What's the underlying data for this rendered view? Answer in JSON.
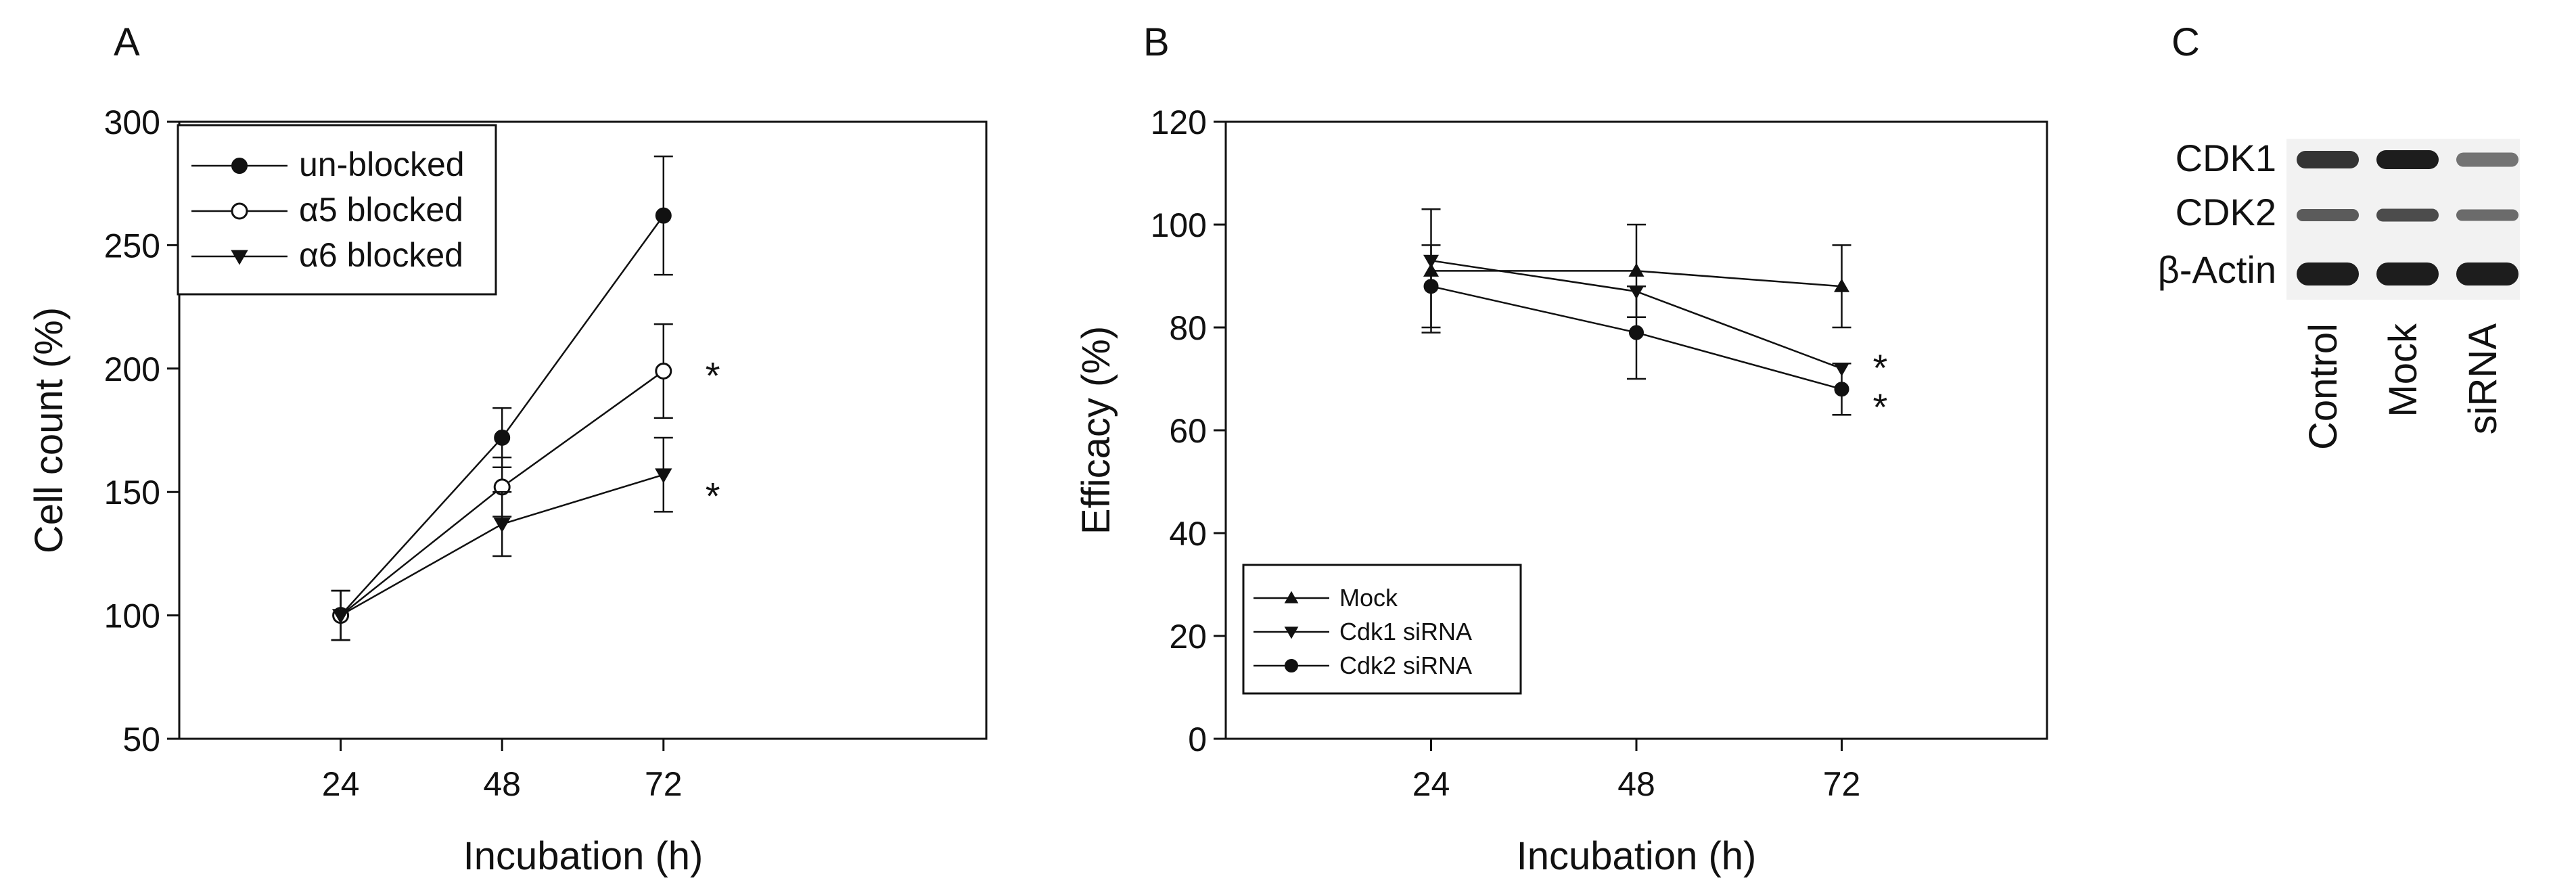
{
  "colors": {
    "ink": "#111111",
    "background": "#ffffff",
    "blot_background": "#f2f2f2"
  },
  "chart_data": [
    {
      "panel": "A",
      "type": "line",
      "xlabel": "Incubation (h)",
      "ylabel": "Cell count (%)",
      "x": [
        24,
        48,
        72
      ],
      "x_tick_labels": [
        "24",
        "48",
        "72"
      ],
      "xlim": [
        0,
        120
      ],
      "ylim": [
        50,
        300
      ],
      "y_ticks": [
        50,
        100,
        150,
        200,
        250,
        300
      ],
      "legend_position": "top-left",
      "series": [
        {
          "name": "un-blocked",
          "marker": "filled-circle",
          "values": [
            100,
            172,
            262
          ],
          "errors": [
            10,
            12,
            24
          ],
          "significance": [
            "",
            "",
            ""
          ]
        },
        {
          "name": "α5 blocked",
          "marker": "open-circle",
          "values": [
            100,
            152,
            199
          ],
          "errors": [
            10,
            12,
            19
          ],
          "significance": [
            "",
            "",
            "*"
          ]
        },
        {
          "name": "α6 blocked",
          "marker": "filled-triangle-down",
          "values": [
            100,
            137,
            157
          ],
          "errors": [
            10,
            13,
            15
          ],
          "significance": [
            "",
            "",
            "*"
          ]
        }
      ]
    },
    {
      "panel": "B",
      "type": "line",
      "xlabel": "Incubation (h)",
      "ylabel": "Efficacy (%)",
      "x": [
        24,
        48,
        72
      ],
      "x_tick_labels": [
        "24",
        "48",
        "72"
      ],
      "xlim": [
        0,
        96
      ],
      "ylim": [
        0,
        120
      ],
      "y_ticks": [
        0,
        20,
        40,
        60,
        80,
        100,
        120
      ],
      "legend_position": "bottom-left",
      "series": [
        {
          "name": "Mock",
          "marker": "filled-triangle-up",
          "values": [
            91,
            91,
            88
          ],
          "errors": [
            12,
            9,
            8
          ],
          "significance": [
            "",
            "",
            ""
          ]
        },
        {
          "name": "Cdk1 siRNA",
          "marker": "filled-triangle-down",
          "values": [
            93,
            87,
            72
          ],
          "errors": [
            0,
            0,
            0
          ],
          "significance": [
            "",
            "",
            "*"
          ]
        },
        {
          "name": "Cdk2 siRNA",
          "marker": "filled-circle",
          "values": [
            88,
            79,
            68
          ],
          "errors": [
            8,
            9,
            5
          ],
          "significance": [
            "",
            "",
            "*"
          ]
        }
      ]
    }
  ],
  "blot": {
    "panel": "C",
    "rows": [
      "CDK1",
      "CDK2",
      "β-Actin"
    ],
    "lanes": [
      "Control",
      "Mock",
      "siRNA"
    ],
    "intensity": [
      [
        0.85,
        1.0,
        0.45
      ],
      [
        0.6,
        0.7,
        0.5
      ],
      [
        1.0,
        1.0,
        1.0
      ]
    ]
  }
}
